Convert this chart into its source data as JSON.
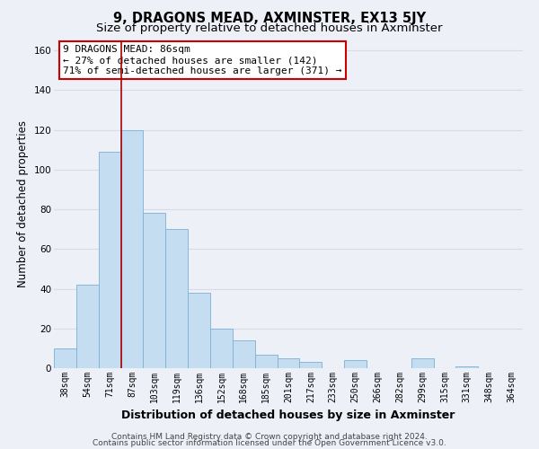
{
  "title": "9, DRAGONS MEAD, AXMINSTER, EX13 5JY",
  "subtitle": "Size of property relative to detached houses in Axminster",
  "xlabel": "Distribution of detached houses by size in Axminster",
  "ylabel": "Number of detached properties",
  "bar_labels": [
    "38sqm",
    "54sqm",
    "71sqm",
    "87sqm",
    "103sqm",
    "119sqm",
    "136sqm",
    "152sqm",
    "168sqm",
    "185sqm",
    "201sqm",
    "217sqm",
    "233sqm",
    "250sqm",
    "266sqm",
    "282sqm",
    "299sqm",
    "315sqm",
    "331sqm",
    "348sqm",
    "364sqm"
  ],
  "bar_heights": [
    10,
    42,
    109,
    120,
    78,
    70,
    38,
    20,
    14,
    7,
    5,
    3,
    0,
    4,
    0,
    0,
    5,
    0,
    1,
    0,
    0
  ],
  "bar_color": "#c5ddf0",
  "bar_edge_color": "#7ab0d4",
  "vline_x_index": 3,
  "vline_color": "#aa0000",
  "annotation_line1": "9 DRAGONS MEAD: 86sqm",
  "annotation_line2": "← 27% of detached houses are smaller (142)",
  "annotation_line3": "71% of semi-detached houses are larger (371) →",
  "annotation_box_color": "#ffffff",
  "annotation_box_edge": "#cc0000",
  "ylim": [
    0,
    165
  ],
  "yticks": [
    0,
    20,
    40,
    60,
    80,
    100,
    120,
    140,
    160
  ],
  "footer_line1": "Contains HM Land Registry data © Crown copyright and database right 2024.",
  "footer_line2": "Contains public sector information licensed under the Open Government Licence v3.0.",
  "background_color": "#eef0f8",
  "grid_color": "#d8dce8",
  "title_fontsize": 10.5,
  "subtitle_fontsize": 9.5,
  "xlabel_fontsize": 9,
  "ylabel_fontsize": 8.5,
  "tick_fontsize": 7,
  "annotation_fontsize": 8,
  "footer_fontsize": 6.5
}
